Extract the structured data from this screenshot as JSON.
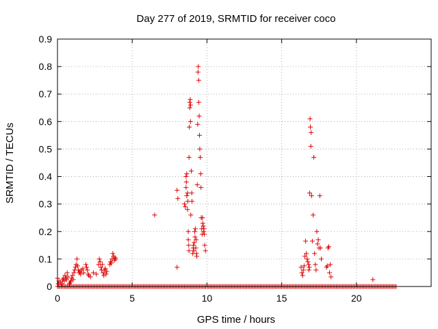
{
  "chart_data": {
    "type": "scatter",
    "title": "Day 277 of 2019, SRMTID for receiver coco",
    "xlabel": "GPS time / hours",
    "ylabel": "SRMTID / TECUs",
    "xlim": [
      0,
      25
    ],
    "ylim": [
      0,
      0.9
    ],
    "xticks": [
      0,
      5,
      10,
      15,
      20
    ],
    "yticks": [
      0,
      0.1,
      0.2,
      0.3,
      0.4,
      0.5,
      0.6,
      0.7,
      0.8,
      0.9
    ],
    "grid": true,
    "marker": "+",
    "color": "#dd0000",
    "zero_band": {
      "start": 0.0,
      "end": 22.7,
      "step": 0.0833,
      "value": 0
    },
    "series": [
      {
        "name": "SRMTID",
        "points": [
          [
            0.0,
            0.03
          ],
          [
            0.05,
            0.01
          ],
          [
            0.1,
            0.02
          ],
          [
            0.2,
            0.015
          ],
          [
            0.3,
            0.01
          ],
          [
            0.35,
            0.025
          ],
          [
            0.4,
            0.03
          ],
          [
            0.45,
            0.02
          ],
          [
            0.5,
            0.04
          ],
          [
            0.55,
            0.03
          ],
          [
            0.6,
            0.025
          ],
          [
            0.65,
            0.05
          ],
          [
            0.7,
            0.035
          ],
          [
            0.8,
            0.01
          ],
          [
            0.85,
            0.015
          ],
          [
            0.9,
            0.02
          ],
          [
            0.95,
            0.03
          ],
          [
            1.0,
            0.04
          ],
          [
            1.05,
            0.025
          ],
          [
            1.1,
            0.05
          ],
          [
            1.15,
            0.06
          ],
          [
            1.2,
            0.07
          ],
          [
            1.25,
            0.08
          ],
          [
            1.3,
            0.1
          ],
          [
            1.35,
            0.075
          ],
          [
            1.4,
            0.06
          ],
          [
            1.45,
            0.05
          ],
          [
            1.5,
            0.055
          ],
          [
            1.55,
            0.045
          ],
          [
            1.6,
            0.06
          ],
          [
            1.7,
            0.065
          ],
          [
            1.75,
            0.05
          ],
          [
            1.9,
            0.08
          ],
          [
            1.95,
            0.07
          ],
          [
            2.0,
            0.06
          ],
          [
            2.05,
            0.045
          ],
          [
            2.1,
            0.04
          ],
          [
            2.2,
            0.035
          ],
          [
            2.4,
            0.05
          ],
          [
            2.6,
            0.045
          ],
          [
            2.75,
            0.08
          ],
          [
            2.8,
            0.1
          ],
          [
            2.85,
            0.09
          ],
          [
            2.9,
            0.07
          ],
          [
            2.95,
            0.06
          ],
          [
            3.0,
            0.08
          ],
          [
            3.05,
            0.05
          ],
          [
            3.1,
            0.04
          ],
          [
            3.15,
            0.06
          ],
          [
            3.2,
            0.065
          ],
          [
            3.25,
            0.045
          ],
          [
            3.3,
            0.055
          ],
          [
            3.5,
            0.08
          ],
          [
            3.55,
            0.09
          ],
          [
            3.6,
            0.085
          ],
          [
            3.65,
            0.1
          ],
          [
            3.7,
            0.12
          ],
          [
            3.75,
            0.11
          ],
          [
            3.8,
            0.095
          ],
          [
            3.85,
            0.105
          ],
          [
            3.9,
            0.1
          ],
          [
            6.5,
            0.26
          ],
          [
            8.0,
            0.07
          ],
          [
            8.0,
            0.35
          ],
          [
            8.05,
            0.32
          ],
          [
            8.5,
            0.3
          ],
          [
            8.55,
            0.29
          ],
          [
            8.6,
            0.36
          ],
          [
            8.6,
            0.4
          ],
          [
            8.62,
            0.38
          ],
          [
            8.65,
            0.41
          ],
          [
            8.65,
            0.33
          ],
          [
            8.7,
            0.28
          ],
          [
            8.7,
            0.34
          ],
          [
            8.72,
            0.31
          ],
          [
            8.75,
            0.2
          ],
          [
            8.75,
            0.17
          ],
          [
            8.78,
            0.15
          ],
          [
            8.8,
            0.13
          ],
          [
            8.8,
            0.47
          ],
          [
            8.82,
            0.58
          ],
          [
            8.85,
            0.65
          ],
          [
            8.85,
            0.67
          ],
          [
            8.88,
            0.68
          ],
          [
            8.9,
            0.66
          ],
          [
            8.9,
            0.6
          ],
          [
            8.92,
            0.26
          ],
          [
            8.95,
            0.42
          ],
          [
            8.98,
            0.34
          ],
          [
            9.0,
            0.31
          ],
          [
            9.05,
            0.12
          ],
          [
            9.08,
            0.14
          ],
          [
            9.1,
            0.15
          ],
          [
            9.12,
            0.13
          ],
          [
            9.15,
            0.16
          ],
          [
            9.18,
            0.2
          ],
          [
            9.2,
            0.18
          ],
          [
            9.22,
            0.21
          ],
          [
            9.25,
            0.14
          ],
          [
            9.28,
            0.17
          ],
          [
            9.3,
            0.12
          ],
          [
            9.32,
            0.11
          ],
          [
            9.35,
            0.37
          ],
          [
            9.38,
            0.59
          ],
          [
            9.4,
            0.78
          ],
          [
            9.42,
            0.8
          ],
          [
            9.45,
            0.75
          ],
          [
            9.45,
            0.67
          ],
          [
            9.48,
            0.62
          ],
          [
            9.5,
            0.55
          ],
          [
            9.52,
            0.5
          ],
          [
            9.55,
            0.47
          ],
          [
            9.58,
            0.41
          ],
          [
            9.6,
            0.36
          ],
          [
            9.62,
            0.25
          ],
          [
            9.65,
            0.21
          ],
          [
            9.68,
            0.19
          ],
          [
            9.7,
            0.25
          ],
          [
            9.72,
            0.23
          ],
          [
            9.75,
            0.22
          ],
          [
            9.78,
            0.2
          ],
          [
            9.8,
            0.21
          ],
          [
            9.82,
            0.19
          ],
          [
            9.85,
            0.15
          ],
          [
            9.9,
            0.13
          ],
          [
            16.3,
            0.07
          ],
          [
            16.35,
            0.05
          ],
          [
            16.4,
            0.04
          ],
          [
            16.45,
            0.06
          ],
          [
            16.5,
            0.075
          ],
          [
            16.55,
            0.11
          ],
          [
            16.6,
            0.165
          ],
          [
            16.65,
            0.12
          ],
          [
            16.7,
            0.1
          ],
          [
            16.75,
            0.09
          ],
          [
            16.8,
            0.08
          ],
          [
            16.82,
            0.06
          ],
          [
            16.85,
            0.07
          ],
          [
            16.87,
            0.34
          ],
          [
            16.9,
            0.61
          ],
          [
            16.92,
            0.58
          ],
          [
            16.95,
            0.51
          ],
          [
            16.97,
            0.56
          ],
          [
            17.0,
            0.33
          ],
          [
            17.05,
            0.165
          ],
          [
            17.1,
            0.26
          ],
          [
            17.15,
            0.47
          ],
          [
            17.2,
            0.12
          ],
          [
            17.25,
            0.08
          ],
          [
            17.3,
            0.06
          ],
          [
            17.35,
            0.2
          ],
          [
            17.4,
            0.155
          ],
          [
            17.45,
            0.17
          ],
          [
            17.5,
            0.14
          ],
          [
            17.55,
            0.33
          ],
          [
            17.6,
            0.14
          ],
          [
            17.65,
            0.1
          ],
          [
            18.0,
            0.07
          ],
          [
            18.05,
            0.075
          ],
          [
            18.1,
            0.14
          ],
          [
            18.15,
            0.145
          ],
          [
            18.2,
            0.05
          ],
          [
            18.25,
            0.08
          ],
          [
            18.3,
            0.035
          ],
          [
            21.1,
            0.025
          ]
        ]
      }
    ]
  }
}
